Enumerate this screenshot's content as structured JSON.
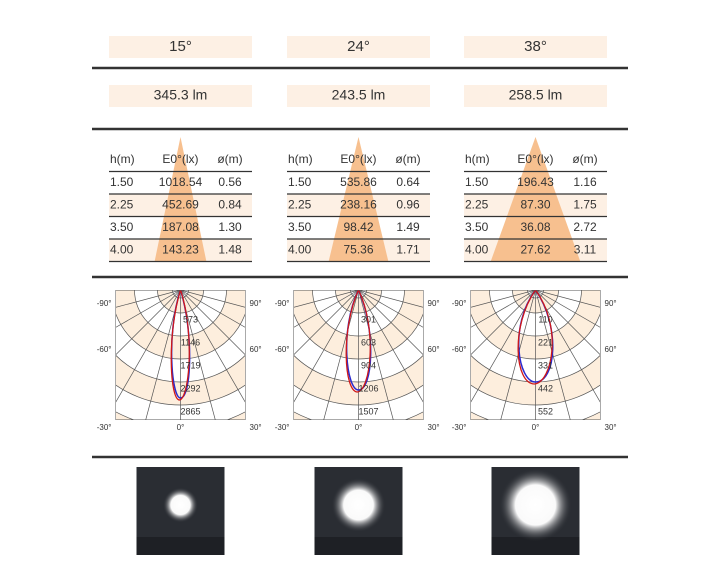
{
  "columns": [
    {
      "angle": "15°",
      "lumen": "345.3 lm",
      "table": {
        "headers": [
          "h(m)",
          "E0°(lx)",
          "ø(m)"
        ],
        "rows": [
          [
            "1.50",
            "1018.54",
            "0.56"
          ],
          [
            "2.25",
            "452.69",
            "0.84"
          ],
          [
            "3.50",
            "187.08",
            "1.30"
          ],
          [
            "4.00",
            "143.23",
            "1.48"
          ]
        ]
      },
      "polar": {
        "rings": [
          "573",
          "1146",
          "1719",
          "2292",
          "2865"
        ],
        "axis_labels": [
          "-90°",
          "90°",
          "-60°",
          "60°",
          "-30°",
          "0°",
          "30°"
        ]
      }
    },
    {
      "angle": "24°",
      "lumen": "243.5 lm",
      "table": {
        "headers": [
          "h(m)",
          "E0°(lx)",
          "ø(m)"
        ],
        "rows": [
          [
            "1.50",
            "535.86",
            "0.64"
          ],
          [
            "2.25",
            "238.16",
            "0.96"
          ],
          [
            "3.50",
            "98.42",
            "1.49"
          ],
          [
            "4.00",
            "75.36",
            "1.71"
          ]
        ]
      },
      "polar": {
        "rings": [
          "301",
          "603",
          "904",
          "1206",
          "1507"
        ],
        "axis_labels": [
          "-90°",
          "90°",
          "-60°",
          "60°",
          "-30°",
          "0°",
          "30°"
        ]
      }
    },
    {
      "angle": "38°",
      "lumen": "258.5 lm",
      "table": {
        "headers": [
          "h(m)",
          "E0°(lx)",
          "ø(m)"
        ],
        "rows": [
          [
            "1.50",
            "196.43",
            "1.16"
          ],
          [
            "2.25",
            "87.30",
            "1.75"
          ],
          [
            "3.50",
            "36.08",
            "2.72"
          ],
          [
            "4.00",
            "27.62",
            "3.11"
          ]
        ]
      },
      "polar": {
        "rings": [
          "110",
          "221",
          "331",
          "442",
          "552"
        ],
        "axis_labels": [
          "-90°",
          "90°",
          "-60°",
          "60°",
          "-30°",
          "0°",
          "30°"
        ]
      }
    }
  ]
}
